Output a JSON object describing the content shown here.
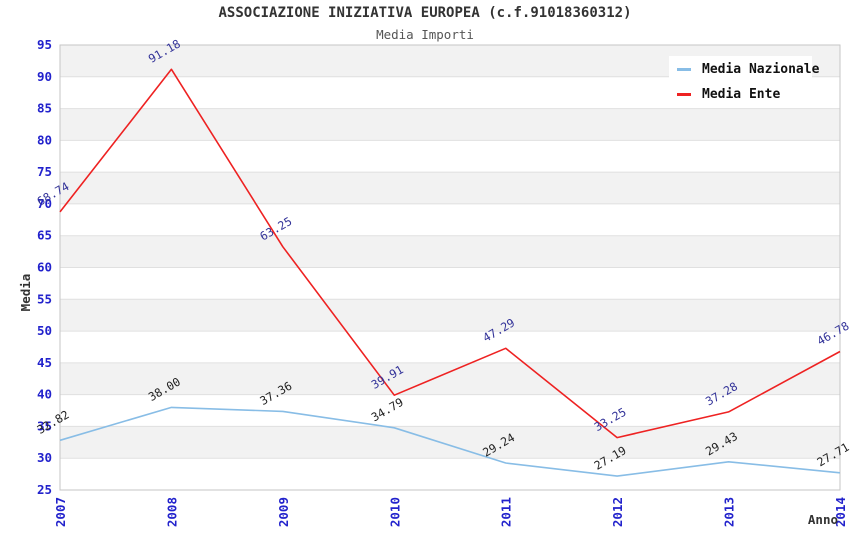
{
  "header": {
    "title": "ASSOCIAZIONE INIZIATIVA EUROPEA (c.f.91018360312)",
    "subtitle": "Media Importi"
  },
  "chart_data": {
    "type": "line",
    "categories": [
      "2007",
      "2008",
      "2009",
      "2010",
      "2011",
      "2012",
      "2013",
      "2014"
    ],
    "series": [
      {
        "name": "Media Nazionale",
        "color": "#88bde6",
        "label_color": "#222222",
        "values": [
          32.82,
          38.0,
          37.36,
          34.79,
          29.24,
          27.19,
          29.43,
          27.71
        ]
      },
      {
        "name": "Media Ente",
        "color": "#ee2222",
        "label_color": "#333399",
        "values": [
          68.74,
          91.18,
          63.25,
          39.91,
          47.29,
          33.25,
          37.28,
          46.78
        ]
      }
    ],
    "xlabel": "Anno",
    "ylabel": "Media",
    "ylim": [
      25,
      95
    ],
    "ytick_step": 5,
    "value_decimals": 2,
    "legend_position": "top-right",
    "grid": true,
    "alternating_bands": true
  },
  "colors": {
    "band_fill": "#f2f2f2",
    "grid_line": "#e0e0e0",
    "plot_border": "#c6c6c6",
    "tick_label": "#2222cc",
    "axis_title": "#333333"
  }
}
